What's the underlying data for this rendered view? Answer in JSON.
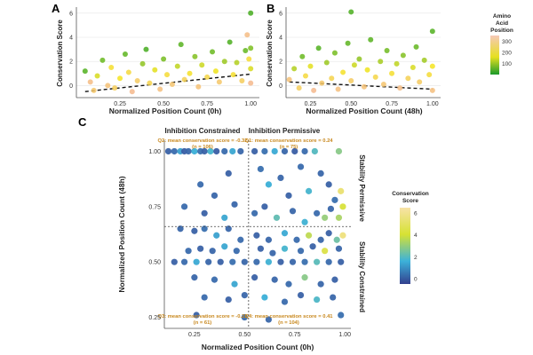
{
  "chart_data": [
    {
      "id": "A",
      "panel_label": "A",
      "type": "scatter",
      "xlabel": "Normalized Position Count (0h)",
      "ylabel": "Conservation Score",
      "xlim": [
        0,
        1.05
      ],
      "ylim": [
        -1,
        6.5
      ],
      "xticks": [
        0.25,
        0.5,
        0.75,
        1.0
      ],
      "xtick_labels": [
        "0.25",
        "0.50",
        "0.75",
        "1.00"
      ],
      "yticks": [
        0,
        2,
        4,
        6
      ],
      "ytick_labels": [
        "0",
        "2",
        "4",
        "6"
      ],
      "trend_line": {
        "x": [
          0.05,
          1.0
        ],
        "y": [
          -0.5,
          0.95
        ],
        "style": "dashed"
      },
      "color_by": "Amino Acid Position",
      "points": [
        {
          "x": 0.05,
          "y": 1.2,
          "c": 40
        },
        {
          "x": 0.08,
          "y": 0.3,
          "c": 320
        },
        {
          "x": 0.1,
          "y": -0.4,
          "c": 280
        },
        {
          "x": 0.12,
          "y": 0.8,
          "c": 150
        },
        {
          "x": 0.15,
          "y": 2.1,
          "c": 60
        },
        {
          "x": 0.18,
          "y": 0.0,
          "c": 300
        },
        {
          "x": 0.2,
          "y": 1.5,
          "c": 200
        },
        {
          "x": 0.22,
          "y": -0.2,
          "c": 260
        },
        {
          "x": 0.25,
          "y": 0.6,
          "c": 180
        },
        {
          "x": 0.28,
          "y": 2.6,
          "c": 50
        },
        {
          "x": 0.3,
          "y": 1.1,
          "c": 220
        },
        {
          "x": 0.32,
          "y": -0.5,
          "c": 330
        },
        {
          "x": 0.35,
          "y": 0.4,
          "c": 270
        },
        {
          "x": 0.38,
          "y": 1.8,
          "c": 90
        },
        {
          "x": 0.4,
          "y": 3.0,
          "c": 30
        },
        {
          "x": 0.42,
          "y": 0.2,
          "c": 240
        },
        {
          "x": 0.45,
          "y": 1.3,
          "c": 160
        },
        {
          "x": 0.48,
          "y": -0.3,
          "c": 310
        },
        {
          "x": 0.5,
          "y": 2.2,
          "c": 70
        },
        {
          "x": 0.52,
          "y": 0.9,
          "c": 210
        },
        {
          "x": 0.55,
          "y": 0.1,
          "c": 290
        },
        {
          "x": 0.58,
          "y": 1.6,
          "c": 130
        },
        {
          "x": 0.6,
          "y": 3.4,
          "c": 45
        },
        {
          "x": 0.62,
          "y": 0.5,
          "c": 250
        },
        {
          "x": 0.65,
          "y": 1.0,
          "c": 190
        },
        {
          "x": 0.68,
          "y": 2.4,
          "c": 80
        },
        {
          "x": 0.7,
          "y": -0.1,
          "c": 300
        },
        {
          "x": 0.72,
          "y": 1.7,
          "c": 140
        },
        {
          "x": 0.75,
          "y": 0.7,
          "c": 230
        },
        {
          "x": 0.78,
          "y": 2.8,
          "c": 60
        },
        {
          "x": 0.8,
          "y": 1.2,
          "c": 170
        },
        {
          "x": 0.82,
          "y": 0.3,
          "c": 280
        },
        {
          "x": 0.85,
          "y": 2.0,
          "c": 100
        },
        {
          "x": 0.88,
          "y": 3.6,
          "c": 35
        },
        {
          "x": 0.9,
          "y": 0.9,
          "c": 200
        },
        {
          "x": 0.92,
          "y": 1.9,
          "c": 120
        },
        {
          "x": 0.95,
          "y": 0.4,
          "c": 260
        },
        {
          "x": 0.97,
          "y": 2.9,
          "c": 55
        },
        {
          "x": 0.98,
          "y": 4.2,
          "c": 320
        },
        {
          "x": 1.0,
          "y": 1.4,
          "c": 150
        },
        {
          "x": 1.0,
          "y": 3.1,
          "c": 75
        },
        {
          "x": 1.0,
          "y": 6.0,
          "c": 30
        },
        {
          "x": 1.0,
          "y": 0.2,
          "c": 330
        },
        {
          "x": 0.99,
          "y": 2.2,
          "c": 210
        }
      ]
    },
    {
      "id": "B",
      "panel_label": "B",
      "type": "scatter",
      "xlabel": "Normalized Position Count (48h)",
      "ylabel": "Conservation Score",
      "xlim": [
        0.1,
        1.05
      ],
      "ylim": [
        -1,
        6.5
      ],
      "xticks": [
        0.25,
        0.5,
        0.75,
        1.0
      ],
      "xtick_labels": [
        "0.25",
        "0.50",
        "0.75",
        "1.00"
      ],
      "yticks": [
        0,
        2,
        4,
        6
      ],
      "ytick_labels": [
        "0",
        "2",
        "4",
        "6"
      ],
      "trend_line": {
        "x": [
          0.12,
          1.0
        ],
        "y": [
          0.3,
          -0.3
        ],
        "style": "dashed"
      },
      "color_by": "Amino Acid Position",
      "points": [
        {
          "x": 0.12,
          "y": 0.5,
          "c": 300
        },
        {
          "x": 0.15,
          "y": 1.4,
          "c": 120
        },
        {
          "x": 0.18,
          "y": -0.2,
          "c": 260
        },
        {
          "x": 0.2,
          "y": 2.4,
          "c": 60
        },
        {
          "x": 0.22,
          "y": 0.8,
          "c": 220
        },
        {
          "x": 0.25,
          "y": 1.6,
          "c": 160
        },
        {
          "x": 0.27,
          "y": -0.4,
          "c": 330
        },
        {
          "x": 0.3,
          "y": 3.1,
          "c": 40
        },
        {
          "x": 0.32,
          "y": 0.2,
          "c": 280
        },
        {
          "x": 0.35,
          "y": 1.9,
          "c": 100
        },
        {
          "x": 0.38,
          "y": 0.6,
          "c": 240
        },
        {
          "x": 0.4,
          "y": 2.7,
          "c": 70
        },
        {
          "x": 0.42,
          "y": -0.3,
          "c": 310
        },
        {
          "x": 0.45,
          "y": 1.1,
          "c": 190
        },
        {
          "x": 0.48,
          "y": 3.5,
          "c": 50
        },
        {
          "x": 0.5,
          "y": 0.4,
          "c": 270
        },
        {
          "x": 0.5,
          "y": 6.1,
          "c": 35
        },
        {
          "x": 0.52,
          "y": 1.7,
          "c": 140
        },
        {
          "x": 0.55,
          "y": 2.2,
          "c": 90
        },
        {
          "x": 0.58,
          "y": -0.1,
          "c": 300
        },
        {
          "x": 0.6,
          "y": 1.3,
          "c": 170
        },
        {
          "x": 0.62,
          "y": 3.8,
          "c": 45
        },
        {
          "x": 0.65,
          "y": 0.7,
          "c": 230
        },
        {
          "x": 0.68,
          "y": 2.0,
          "c": 110
        },
        {
          "x": 0.7,
          "y": 0.1,
          "c": 290
        },
        {
          "x": 0.72,
          "y": 2.9,
          "c": 65
        },
        {
          "x": 0.75,
          "y": 1.0,
          "c": 200
        },
        {
          "x": 0.78,
          "y": 1.8,
          "c": 130
        },
        {
          "x": 0.8,
          "y": -0.2,
          "c": 320
        },
        {
          "x": 0.82,
          "y": 2.5,
          "c": 80
        },
        {
          "x": 0.85,
          "y": 0.6,
          "c": 250
        },
        {
          "x": 0.88,
          "y": 1.5,
          "c": 150
        },
        {
          "x": 0.9,
          "y": 3.2,
          "c": 55
        },
        {
          "x": 0.92,
          "y": 0.3,
          "c": 270
        },
        {
          "x": 0.95,
          "y": 2.1,
          "c": 105
        },
        {
          "x": 0.98,
          "y": 0.9,
          "c": 210
        },
        {
          "x": 1.0,
          "y": 1.6,
          "c": 180
        },
        {
          "x": 1.0,
          "y": 4.5,
          "c": 40
        },
        {
          "x": 1.0,
          "y": -0.4,
          "c": 310
        }
      ]
    },
    {
      "id": "C",
      "panel_label": "C",
      "type": "scatter",
      "xlabel": "Normalized Position Count (0h)",
      "ylabel": "Normalized Position Count (48h)",
      "xlim": [
        0.1,
        1.03
      ],
      "ylim": [
        0.2,
        1.05
      ],
      "xticks": [
        0.25,
        0.5,
        0.75,
        1.0
      ],
      "xtick_labels": [
        "0.25",
        "0.50",
        "0.75",
        "1.00"
      ],
      "yticks": [
        0.25,
        0.5,
        0.75,
        1.0
      ],
      "ytick_labels": [
        "0.25",
        "0.50",
        "0.75",
        "1.00"
      ],
      "vline_x": 0.52,
      "hline_y": 0.66,
      "top_left_header": "Inhibition Constrained",
      "top_right_header": "Inhibition Permissive",
      "right_upper_label": "Stability Permissive",
      "right_lower_label": "Stability Constrained",
      "quadrants": [
        {
          "name": "Q2",
          "label": "Q2: mean conservation score = -0.32",
          "n": "(n = 106)"
        },
        {
          "name": "Q1",
          "label": "Q1: mean conservation score = 0.24",
          "n": "(n = 75)"
        },
        {
          "name": "Q3",
          "label": "Q3: mean conservation score = -0.21",
          "n": "(n = 61)"
        },
        {
          "name": "Q4",
          "label": "Q4: mean conservation score = 0.41",
          "n": "(n = 104)"
        }
      ],
      "color_by": "Conservation Score",
      "points": [
        {
          "x": 0.12,
          "y": 1.0,
          "c": 0.1
        },
        {
          "x": 0.15,
          "y": 1.0,
          "c": 0.3
        },
        {
          "x": 0.18,
          "y": 1.0,
          "c": 1.5
        },
        {
          "x": 0.2,
          "y": 1.0,
          "c": 0.0
        },
        {
          "x": 0.22,
          "y": 1.0,
          "c": 0.2
        },
        {
          "x": 0.25,
          "y": 1.0,
          "c": 1.8
        },
        {
          "x": 0.28,
          "y": 1.0,
          "c": 0.4
        },
        {
          "x": 0.3,
          "y": 1.0,
          "c": 0.1
        },
        {
          "x": 0.33,
          "y": 1.0,
          "c": 2.0
        },
        {
          "x": 0.36,
          "y": 1.0,
          "c": 0.0
        },
        {
          "x": 0.4,
          "y": 1.0,
          "c": 0.3
        },
        {
          "x": 0.44,
          "y": 1.0,
          "c": 1.6
        },
        {
          "x": 0.48,
          "y": 1.0,
          "c": 0.2
        },
        {
          "x": 0.55,
          "y": 1.0,
          "c": 0.1
        },
        {
          "x": 0.6,
          "y": 1.0,
          "c": 0.4
        },
        {
          "x": 0.65,
          "y": 1.0,
          "c": 1.7
        },
        {
          "x": 0.7,
          "y": 1.0,
          "c": 0.2
        },
        {
          "x": 0.75,
          "y": 1.0,
          "c": 0.0
        },
        {
          "x": 0.8,
          "y": 1.0,
          "c": 0.3
        },
        {
          "x": 0.85,
          "y": 1.0,
          "c": 2.2
        },
        {
          "x": 0.97,
          "y": 1.0,
          "c": 3.0
        },
        {
          "x": 0.28,
          "y": 0.85,
          "c": 0.3
        },
        {
          "x": 0.35,
          "y": 0.8,
          "c": 0.2
        },
        {
          "x": 0.42,
          "y": 0.9,
          "c": 0.1
        },
        {
          "x": 0.58,
          "y": 0.92,
          "c": 0.4
        },
        {
          "x": 0.62,
          "y": 0.85,
          "c": 1.8
        },
        {
          "x": 0.68,
          "y": 0.88,
          "c": 0.2
        },
        {
          "x": 0.72,
          "y": 0.8,
          "c": 0.1
        },
        {
          "x": 0.78,
          "y": 0.93,
          "c": 0.3
        },
        {
          "x": 0.82,
          "y": 0.82,
          "c": 2.0
        },
        {
          "x": 0.88,
          "y": 0.9,
          "c": 0.2
        },
        {
          "x": 0.92,
          "y": 0.85,
          "c": 0.1
        },
        {
          "x": 0.95,
          "y": 0.78,
          "c": 0.4
        },
        {
          "x": 0.98,
          "y": 0.82,
          "c": 5.5
        },
        {
          "x": 0.99,
          "y": 0.75,
          "c": 4.2
        },
        {
          "x": 0.97,
          "y": 0.7,
          "c": 3.5
        },
        {
          "x": 0.2,
          "y": 0.75,
          "c": 0.3
        },
        {
          "x": 0.3,
          "y": 0.72,
          "c": 0.1
        },
        {
          "x": 0.4,
          "y": 0.7,
          "c": 1.6
        },
        {
          "x": 0.45,
          "y": 0.76,
          "c": 0.2
        },
        {
          "x": 0.55,
          "y": 0.72,
          "c": 0.3
        },
        {
          "x": 0.6,
          "y": 0.75,
          "c": 0.1
        },
        {
          "x": 0.66,
          "y": 0.7,
          "c": 2.4
        },
        {
          "x": 0.74,
          "y": 0.73,
          "c": 0.2
        },
        {
          "x": 0.8,
          "y": 0.68,
          "c": 1.9
        },
        {
          "x": 0.86,
          "y": 0.72,
          "c": 0.3
        },
        {
          "x": 0.9,
          "y": 0.7,
          "c": 3.2
        },
        {
          "x": 0.93,
          "y": 0.74,
          "c": 0.2
        },
        {
          "x": 0.18,
          "y": 0.65,
          "c": 0.2
        },
        {
          "x": 0.25,
          "y": 0.64,
          "c": 0.1
        },
        {
          "x": 0.3,
          "y": 0.65,
          "c": 0.4
        },
        {
          "x": 0.36,
          "y": 0.62,
          "c": 1.5
        },
        {
          "x": 0.42,
          "y": 0.65,
          "c": 0.2
        },
        {
          "x": 0.48,
          "y": 0.6,
          "c": 0.3
        },
        {
          "x": 0.56,
          "y": 0.62,
          "c": 0.1
        },
        {
          "x": 0.62,
          "y": 0.6,
          "c": 0.2
        },
        {
          "x": 0.7,
          "y": 0.63,
          "c": 1.7
        },
        {
          "x": 0.76,
          "y": 0.6,
          "c": 0.3
        },
        {
          "x": 0.82,
          "y": 0.62,
          "c": 3.8
        },
        {
          "x": 0.88,
          "y": 0.6,
          "c": 0.2
        },
        {
          "x": 0.92,
          "y": 0.63,
          "c": 0.1
        },
        {
          "x": 0.96,
          "y": 0.6,
          "c": 2.6
        },
        {
          "x": 0.99,
          "y": 0.62,
          "c": 5.8
        },
        {
          "x": 0.22,
          "y": 0.55,
          "c": 0.3
        },
        {
          "x": 0.28,
          "y": 0.56,
          "c": 0.1
        },
        {
          "x": 0.34,
          "y": 0.55,
          "c": 0.2
        },
        {
          "x": 0.4,
          "y": 0.57,
          "c": 1.6
        },
        {
          "x": 0.46,
          "y": 0.55,
          "c": 0.3
        },
        {
          "x": 0.58,
          "y": 0.56,
          "c": 0.1
        },
        {
          "x": 0.64,
          "y": 0.54,
          "c": 0.2
        },
        {
          "x": 0.7,
          "y": 0.56,
          "c": 2.0
        },
        {
          "x": 0.78,
          "y": 0.55,
          "c": 0.3
        },
        {
          "x": 0.84,
          "y": 0.57,
          "c": 0.1
        },
        {
          "x": 0.9,
          "y": 0.55,
          "c": 4.5
        },
        {
          "x": 0.97,
          "y": 0.56,
          "c": 0.2
        },
        {
          "x": 0.15,
          "y": 0.5,
          "c": 0.1
        },
        {
          "x": 0.2,
          "y": 0.5,
          "c": 0.3
        },
        {
          "x": 0.26,
          "y": 0.5,
          "c": 1.7
        },
        {
          "x": 0.32,
          "y": 0.5,
          "c": 0.2
        },
        {
          "x": 0.38,
          "y": 0.5,
          "c": 0.1
        },
        {
          "x": 0.44,
          "y": 0.5,
          "c": 0.4
        },
        {
          "x": 0.5,
          "y": 0.5,
          "c": 0.2
        },
        {
          "x": 0.56,
          "y": 0.5,
          "c": 0.3
        },
        {
          "x": 0.62,
          "y": 0.5,
          "c": 1.9
        },
        {
          "x": 0.68,
          "y": 0.5,
          "c": 0.1
        },
        {
          "x": 0.74,
          "y": 0.5,
          "c": 0.2
        },
        {
          "x": 0.8,
          "y": 0.5,
          "c": 0.4
        },
        {
          "x": 0.86,
          "y": 0.5,
          "c": 2.3
        },
        {
          "x": 0.92,
          "y": 0.5,
          "c": 0.3
        },
        {
          "x": 0.98,
          "y": 0.5,
          "c": 0.1
        },
        {
          "x": 0.25,
          "y": 0.43,
          "c": 0.2
        },
        {
          "x": 0.35,
          "y": 0.42,
          "c": 0.3
        },
        {
          "x": 0.45,
          "y": 0.4,
          "c": 1.6
        },
        {
          "x": 0.55,
          "y": 0.43,
          "c": 0.1
        },
        {
          "x": 0.65,
          "y": 0.42,
          "c": 0.2
        },
        {
          "x": 0.72,
          "y": 0.4,
          "c": 0.3
        },
        {
          "x": 0.8,
          "y": 0.43,
          "c": 3.0
        },
        {
          "x": 0.88,
          "y": 0.4,
          "c": 0.2
        },
        {
          "x": 0.95,
          "y": 0.42,
          "c": 0.1
        },
        {
          "x": 0.3,
          "y": 0.34,
          "c": 0.3
        },
        {
          "x": 0.42,
          "y": 0.33,
          "c": 0.1
        },
        {
          "x": 0.5,
          "y": 0.35,
          "c": 0.2
        },
        {
          "x": 0.6,
          "y": 0.34,
          "c": 1.8
        },
        {
          "x": 0.7,
          "y": 0.32,
          "c": 0.3
        },
        {
          "x": 0.78,
          "y": 0.35,
          "c": 0.1
        },
        {
          "x": 0.86,
          "y": 0.33,
          "c": 2.1
        },
        {
          "x": 0.94,
          "y": 0.34,
          "c": 0.2
        },
        {
          "x": 0.26,
          "y": 0.26,
          "c": 0.1
        },
        {
          "x": 0.5,
          "y": 0.25,
          "c": 0.3
        },
        {
          "x": 0.62,
          "y": 0.24,
          "c": 0.2
        },
        {
          "x": 0.98,
          "y": 0.26,
          "c": 0.4
        }
      ]
    }
  ],
  "legends": {
    "aa_position": {
      "title_lines": [
        "Amino",
        "Acid",
        "Position"
      ],
      "ticks": [
        "300",
        "200",
        "100"
      ],
      "tick_values": [
        300,
        200,
        100
      ],
      "range": [
        0,
        350
      ],
      "colors": [
        "#20a020",
        "#f5e51c",
        "#f4b39a"
      ]
    },
    "conservation": {
      "title_lines": [
        "Conservation",
        "Score"
      ],
      "ticks": [
        "6",
        "4",
        "2",
        "0"
      ],
      "tick_values": [
        6,
        4,
        2,
        0
      ],
      "range": [
        -0.5,
        6.5
      ],
      "colors": [
        "#3a4796",
        "#3bb0d8",
        "#d8e23a",
        "#f7df9a"
      ]
    }
  }
}
